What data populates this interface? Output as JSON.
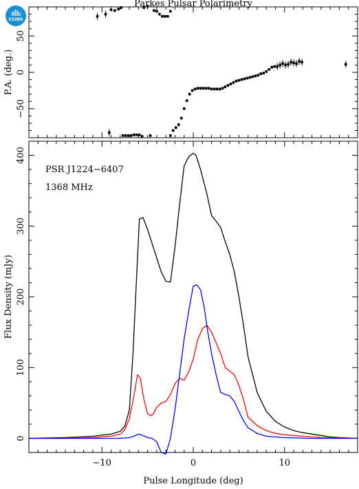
{
  "logo": {
    "text": "CSIRO"
  },
  "chart_data": [
    {
      "type": "scatter",
      "title": "Parkes Pulsar Polarimetry",
      "xlabel": "",
      "ylabel": "P.A. (deg.)",
      "xlim": [
        -18,
        18
      ],
      "ylim": [
        -90,
        90
      ],
      "yticks": [
        -50,
        0,
        50
      ],
      "series": [
        {
          "name": "",
          "points": [
            [
              -10.5,
              77
            ],
            [
              -9.6,
              80
            ],
            [
              -9.0,
              86
            ],
            [
              -8.6,
              85
            ],
            [
              -8.2,
              87
            ],
            [
              -7.9,
              89
            ],
            [
              -5.4,
              89
            ],
            [
              -5.0,
              91
            ],
            [
              -4.3,
              85
            ],
            [
              -4.0,
              84
            ],
            [
              -3.7,
              80
            ],
            [
              -3.4,
              77
            ],
            [
              -3.1,
              77
            ],
            [
              -2.8,
              77
            ],
            [
              -2.5,
              84
            ],
            [
              -9.2,
              -83
            ],
            [
              -7.7,
              -87
            ],
            [
              -7.4,
              -87
            ],
            [
              -7.1,
              -87
            ],
            [
              -6.8,
              -87
            ],
            [
              -6.5,
              -86
            ],
            [
              -6.2,
              -86
            ],
            [
              -5.9,
              -86
            ],
            [
              -5.6,
              -88
            ],
            [
              -4.7,
              -87
            ],
            [
              -2.5,
              -87
            ],
            [
              -2.2,
              -80
            ],
            [
              -1.9,
              -76
            ],
            [
              -1.6,
              -72
            ],
            [
              -1.3,
              -63
            ],
            [
              -1.0,
              -50
            ],
            [
              -0.7,
              -39
            ],
            [
              -0.4,
              -30
            ],
            [
              -0.1,
              -25
            ],
            [
              0.2,
              -23
            ],
            [
              0.5,
              -22
            ],
            [
              0.8,
              -22
            ],
            [
              1.1,
              -22
            ],
            [
              1.4,
              -22
            ],
            [
              1.7,
              -22
            ],
            [
              2.0,
              -23
            ],
            [
              2.3,
              -23
            ],
            [
              2.6,
              -23
            ],
            [
              2.9,
              -23
            ],
            [
              3.2,
              -22
            ],
            [
              3.5,
              -20
            ],
            [
              3.8,
              -18
            ],
            [
              4.1,
              -16
            ],
            [
              4.4,
              -14
            ],
            [
              4.7,
              -12
            ],
            [
              5.0,
              -11
            ],
            [
              5.3,
              -10
            ],
            [
              5.6,
              -9
            ],
            [
              5.9,
              -8
            ],
            [
              6.2,
              -7
            ],
            [
              6.5,
              -6
            ],
            [
              6.8,
              -5
            ],
            [
              7.1,
              -4
            ],
            [
              7.4,
              -2
            ],
            [
              7.7,
              -1
            ],
            [
              8.0,
              1
            ],
            [
              8.3,
              4
            ],
            [
              8.6,
              7
            ],
            [
              8.9,
              8
            ],
            [
              9.2,
              8
            ],
            [
              9.5,
              10
            ],
            [
              9.8,
              12
            ],
            [
              10.1,
              10
            ],
            [
              10.4,
              11
            ],
            [
              10.7,
              14
            ],
            [
              11.0,
              13
            ],
            [
              11.3,
              12
            ],
            [
              11.6,
              15
            ],
            [
              11.9,
              14
            ],
            [
              16.7,
              11
            ]
          ]
        }
      ]
    },
    {
      "type": "line",
      "title": "",
      "xlabel": "Pulse Longitude (deg)",
      "ylabel": "Flux Density (mJy)",
      "xlim": [
        -18,
        18
      ],
      "ylim": [
        -20,
        420
      ],
      "xticks": [
        -10,
        0,
        10
      ],
      "yticks": [
        0,
        100,
        200,
        300,
        400
      ],
      "annotations": [
        "PSR J1224−6407",
        "1368 MHz"
      ],
      "series": [
        {
          "name": "",
          "color": "#000000",
          "x": [
            -18,
            -14,
            -11,
            -9,
            -8,
            -7.5,
            -7,
            -6.6,
            -6.2,
            -5.9,
            -5.5,
            -5,
            -4.5,
            -4,
            -3.5,
            -3,
            -2.5,
            -2,
            -1.5,
            -1,
            -0.5,
            0,
            0.3,
            0.8,
            1.5,
            2,
            2.5,
            3,
            3.5,
            4,
            4.5,
            5,
            5.5,
            6,
            7,
            8,
            9,
            10,
            11,
            12,
            13,
            14,
            15,
            16,
            18
          ],
          "y": [
            0,
            1,
            3,
            6,
            10,
            17,
            40,
            120,
            230,
            310,
            312,
            295,
            275,
            255,
            235,
            222,
            221,
            270,
            330,
            385,
            398,
            403,
            400,
            380,
            345,
            315,
            307,
            298,
            278,
            260,
            235,
            200,
            160,
            115,
            65,
            38,
            24,
            16,
            11,
            8,
            6,
            4,
            2,
            1,
            0
          ]
        },
        {
          "name": "",
          "color": "#ff0000",
          "x": [
            -18,
            -14,
            -11,
            -9,
            -8,
            -7.5,
            -7,
            -6.5,
            -6.1,
            -5.8,
            -5.4,
            -5,
            -4.7,
            -4.4,
            -4,
            -3.5,
            -3,
            -2.5,
            -2,
            -1.5,
            -1,
            -0.5,
            0,
            0.5,
            1,
            1.5,
            2,
            2.5,
            3,
            3.5,
            4,
            4.5,
            5,
            5.5,
            6,
            7,
            8,
            9,
            10,
            12,
            14,
            18
          ],
          "y": [
            0,
            0,
            1,
            3,
            6,
            12,
            28,
            60,
            90,
            85,
            55,
            35,
            32,
            34,
            44,
            50,
            52,
            62,
            77,
            85,
            82,
            94,
            112,
            140,
            155,
            160,
            150,
            135,
            120,
            100,
            95,
            90,
            75,
            55,
            30,
            18,
            11,
            7,
            5,
            3,
            1,
            0
          ]
        },
        {
          "name": "",
          "color": "#0000ff",
          "x": [
            -18,
            -12,
            -8,
            -7,
            -6.5,
            -6,
            -5.5,
            -5,
            -4.5,
            -4,
            -3.5,
            -3,
            -2.5,
            -2,
            -1.5,
            -1,
            -0.5,
            0,
            0.4,
            0.8,
            1.2,
            1.6,
            2,
            2.5,
            3,
            3.5,
            4,
            4.5,
            5,
            5.5,
            6,
            7,
            8,
            10,
            13,
            18
          ],
          "y": [
            0,
            0,
            0,
            1,
            3,
            6,
            4,
            1,
            0,
            -5,
            -20,
            -22,
            0,
            40,
            90,
            140,
            180,
            215,
            217,
            210,
            185,
            150,
            120,
            90,
            65,
            62,
            60,
            52,
            38,
            25,
            15,
            7,
            3,
            1,
            0,
            0
          ]
        }
      ]
    }
  ]
}
